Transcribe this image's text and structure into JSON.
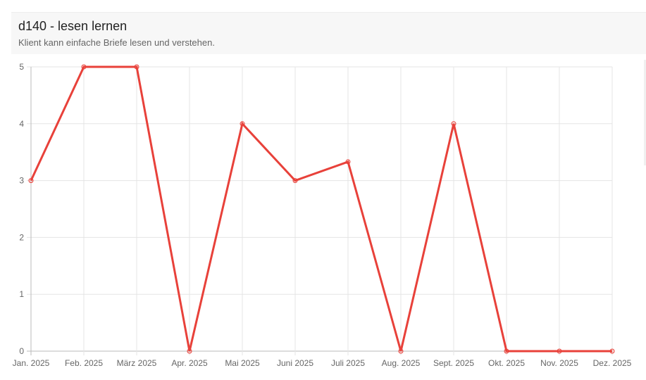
{
  "header": {
    "title": "d140 - lesen lernen",
    "subtitle": "Klient kann einfache Briefe lesen und verstehen."
  },
  "chart_data": {
    "type": "line",
    "title": "d140 - lesen lernen",
    "subtitle": "Klient kann einfache Briefe lesen und verstehen.",
    "xlabel": "",
    "ylabel": "",
    "categories": [
      "Jan. 2025",
      "Feb. 2025",
      "März 2025",
      "Apr. 2025",
      "Mai 2025",
      "Juni 2025",
      "Juli 2025",
      "Aug. 2025",
      "Sept. 2025",
      "Okt. 2025",
      "Nov. 2025",
      "Dez. 2025"
    ],
    "series": [
      {
        "values": [
          3,
          5,
          5,
          0,
          4,
          3,
          3.33,
          0,
          4,
          0,
          0,
          0
        ],
        "color": "#e8413a"
      }
    ],
    "ylim": [
      0,
      5
    ],
    "yticks": [
      0,
      1,
      2,
      3,
      4,
      5
    ],
    "grid": true,
    "legend": "none"
  }
}
